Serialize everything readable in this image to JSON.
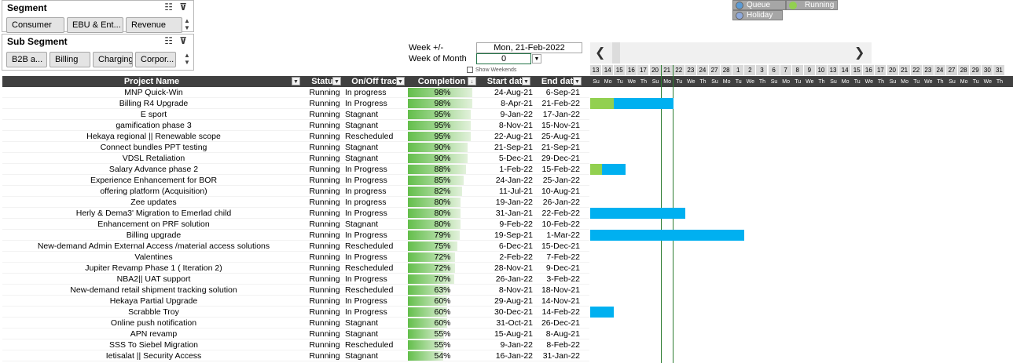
{
  "segment": {
    "title": "Segment",
    "items": [
      "Consumer",
      "EBU & Ent...",
      "Revenue"
    ]
  },
  "sub_segment": {
    "title": "Sub Segment",
    "items": [
      "B2B a...",
      "Billing",
      "Charging",
      "Corpor..."
    ]
  },
  "legend": {
    "queue": "Queue",
    "running": "Running",
    "holiday": "Holiday",
    "colors": {
      "queue": "#5b9bd5",
      "running": "#92d050",
      "holiday": "#8ea9db"
    }
  },
  "controls": {
    "week_label": "Week +/-",
    "week_value": "Mon, 21-Feb-2022",
    "month_label": "Week of Month",
    "month_value": "0",
    "show_weekends": "Show Weekends"
  },
  "columns": {
    "name": "Project Name",
    "status": "Statu",
    "track": "On/Off trac",
    "completion": "Completion",
    "start": "Start dat",
    "end": "End dat"
  },
  "gantt": {
    "date_numbers": [
      "13",
      "14",
      "15",
      "16",
      "17",
      "20",
      "21",
      "22",
      "23",
      "24",
      "27",
      "28",
      "1",
      "2",
      "3",
      "6",
      "7",
      "8",
      "9",
      "10",
      "13",
      "14",
      "15",
      "16",
      "17",
      "20",
      "21",
      "22",
      "23",
      "24",
      "27",
      "28",
      "29",
      "30",
      "31"
    ],
    "day_labels": [
      "Su",
      "Mo",
      "Tu",
      "We",
      "Th",
      "Su",
      "Mo",
      "Tu",
      "We",
      "Th",
      "Su",
      "Mo",
      "Tu",
      "We",
      "Th",
      "Su",
      "Mo",
      "Tu",
      "We",
      "Th",
      "Su",
      "Mo",
      "Tu",
      "We",
      "Th",
      "Su",
      "Mo",
      "Tu",
      "We",
      "Th",
      "Su",
      "Mo",
      "Tu",
      "We",
      "Th"
    ],
    "colors": {
      "completed": "#92d050",
      "remaining": "#00b0f0",
      "today_line": "#2e7d32"
    }
  },
  "rows": [
    {
      "name": "MNP Quick-Win",
      "status": "Running",
      "track": "In progress",
      "completion": 98,
      "completion_text": "98%",
      "start": "24-Aug-21",
      "end": "6-Sep-21",
      "gantt": null
    },
    {
      "name": "Billing R4 Upgrade",
      "status": "Running",
      "track": "In Progress",
      "completion": 98,
      "completion_text": "98%",
      "start": "8-Apr-21",
      "end": "21-Feb-22",
      "gantt": {
        "done_cols": 2,
        "total_cols": 7
      }
    },
    {
      "name": "E sport",
      "status": "Running",
      "track": "Stagnant",
      "completion": 95,
      "completion_text": "95%",
      "start": "9-Jan-22",
      "end": "17-Jan-22",
      "gantt": null
    },
    {
      "name": "gamification phase 3",
      "status": "Running",
      "track": "Stagnant",
      "completion": 95,
      "completion_text": "95%",
      "start": "8-Nov-21",
      "end": "15-Nov-21",
      "gantt": null
    },
    {
      "name": "Hekaya regional || Renewable scope",
      "status": "Running",
      "track": "Rescheduled",
      "completion": 95,
      "completion_text": "95%",
      "start": "22-Aug-21",
      "end": "25-Aug-21",
      "gantt": null
    },
    {
      "name": "Connect bundles PPT testing",
      "status": "Running",
      "track": "Stagnant",
      "completion": 90,
      "completion_text": "90%",
      "start": "21-Sep-21",
      "end": "21-Sep-21",
      "gantt": null
    },
    {
      "name": "VDSL Retaliation",
      "status": "Running",
      "track": "Stagnant",
      "completion": 90,
      "completion_text": "90%",
      "start": "5-Dec-21",
      "end": "29-Dec-21",
      "gantt": null
    },
    {
      "name": "Salary Advance phase 2",
      "status": "Running",
      "track": "In Progress",
      "completion": 88,
      "completion_text": "88%",
      "start": "1-Feb-22",
      "end": "15-Feb-22",
      "gantt": {
        "done_cols": 1,
        "total_cols": 3
      }
    },
    {
      "name": "Experience Enhancement for BOR",
      "status": "Running",
      "track": "In Progress",
      "completion": 85,
      "completion_text": "85%",
      "start": "24-Jan-22",
      "end": "25-Jan-22",
      "gantt": null
    },
    {
      "name": "offering platform (Acquisition)",
      "status": "Running",
      "track": "In progress",
      "completion": 82,
      "completion_text": "82%",
      "start": "11-Jul-21",
      "end": "10-Aug-21",
      "gantt": null
    },
    {
      "name": "Zee updates",
      "status": "Running",
      "track": "In progress",
      "completion": 80,
      "completion_text": "80%",
      "start": "19-Jan-22",
      "end": "26-Jan-22",
      "gantt": null
    },
    {
      "name": "Herly & Dema3' Migration to Emerlad child",
      "status": "Running",
      "track": "In Progress",
      "completion": 80,
      "completion_text": "80%",
      "start": "31-Jan-21",
      "end": "22-Feb-22",
      "gantt": {
        "done_cols": 0,
        "total_cols": 8
      }
    },
    {
      "name": "Enhancement on PRF solution",
      "status": "Running",
      "track": "Stagnant",
      "completion": 80,
      "completion_text": "80%",
      "start": "9-Feb-22",
      "end": "10-Feb-22",
      "gantt": null
    },
    {
      "name": "Billing upgrade",
      "status": "Running",
      "track": "In Progress",
      "completion": 79,
      "completion_text": "79%",
      "start": "19-Sep-21",
      "end": "1-Mar-22",
      "gantt": {
        "done_cols": 0,
        "total_cols": 13
      }
    },
    {
      "name": "New-demand Admin External Access /material access solutions",
      "status": "Running",
      "track": "Rescheduled",
      "completion": 75,
      "completion_text": "75%",
      "start": "6-Dec-21",
      "end": "15-Dec-21",
      "gantt": null
    },
    {
      "name": "Valentines",
      "status": "Running",
      "track": "In Progress",
      "completion": 72,
      "completion_text": "72%",
      "start": "2-Feb-22",
      "end": "7-Feb-22",
      "gantt": null
    },
    {
      "name": "Jupiter Revamp Phase 1 ( Iteration 2)",
      "status": "Running",
      "track": "Rescheduled",
      "completion": 72,
      "completion_text": "72%",
      "start": "28-Nov-21",
      "end": "9-Dec-21",
      "gantt": null
    },
    {
      "name": "NBA2|| UAT support",
      "status": "Running",
      "track": "In Progress",
      "completion": 70,
      "completion_text": "70%",
      "start": "26-Jan-22",
      "end": "3-Feb-22",
      "gantt": null
    },
    {
      "name": "New-demand retail shipment tracking solution",
      "status": "Running",
      "track": "Rescheduled",
      "completion": 63,
      "completion_text": "63%",
      "start": "8-Nov-21",
      "end": "18-Nov-21",
      "gantt": null
    },
    {
      "name": "Hekaya Partial Upgrade",
      "status": "Running",
      "track": "In Progress",
      "completion": 60,
      "completion_text": "60%",
      "start": "29-Aug-21",
      "end": "14-Nov-21",
      "gantt": null
    },
    {
      "name": "Scrabble Troy",
      "status": "Running",
      "track": "In Progress",
      "completion": 60,
      "completion_text": "60%",
      "start": "30-Dec-21",
      "end": "14-Feb-22",
      "gantt": {
        "done_cols": 0,
        "total_cols": 2
      }
    },
    {
      "name": "Online push notification",
      "status": "Running",
      "track": "Stagnant",
      "completion": 60,
      "completion_text": "60%",
      "start": "31-Oct-21",
      "end": "26-Dec-21",
      "gantt": null
    },
    {
      "name": "APN revamp",
      "status": "Running",
      "track": "Stagnant",
      "completion": 55,
      "completion_text": "55%",
      "start": "15-Aug-21",
      "end": "8-Aug-21",
      "gantt": null
    },
    {
      "name": "SSS To Siebel Migration",
      "status": "Running",
      "track": "Rescheduled",
      "completion": 55,
      "completion_text": "55%",
      "start": "9-Jan-22",
      "end": "8-Feb-22",
      "gantt": null
    },
    {
      "name": "Ietisalat || Security Access",
      "status": "Running",
      "track": "Stagnant",
      "completion": 54,
      "completion_text": "54%",
      "start": "16-Jan-22",
      "end": "31-Jan-22",
      "gantt": null
    }
  ]
}
